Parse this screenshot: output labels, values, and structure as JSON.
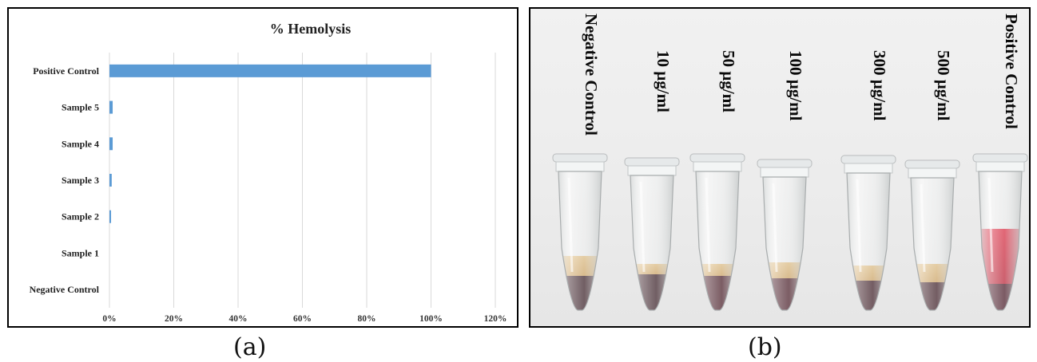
{
  "panel_a_caption": "(a)",
  "panel_b_caption": "(b)",
  "chart_data": {
    "type": "bar",
    "orientation": "horizontal",
    "title": "% Hemolysis",
    "xlabel": "",
    "ylabel": "",
    "categories": [
      "Negative Control",
      "Sample 1",
      "Sample 2",
      "Sample 3",
      "Sample 4",
      "Sample 5",
      "Positive Control"
    ],
    "values": [
      0,
      0,
      0.5,
      0.7,
      1.0,
      1.0,
      100
    ],
    "xlim": [
      0,
      120
    ],
    "x_ticks": [
      0,
      20,
      40,
      60,
      80,
      100,
      120
    ],
    "x_tick_labels": [
      "0%",
      "20%",
      "40%",
      "60%",
      "80%",
      "100%",
      "120%"
    ],
    "grid": "vertical",
    "legend": "none",
    "bar_color": "#5b9bd5"
  },
  "photo": {
    "tube_labels": [
      "Negative Control",
      "10 µg/ml",
      "50 µg/ml",
      "100 µg/ml",
      "300 µg/ml",
      "500 µg/ml",
      "Positive Control"
    ]
  }
}
